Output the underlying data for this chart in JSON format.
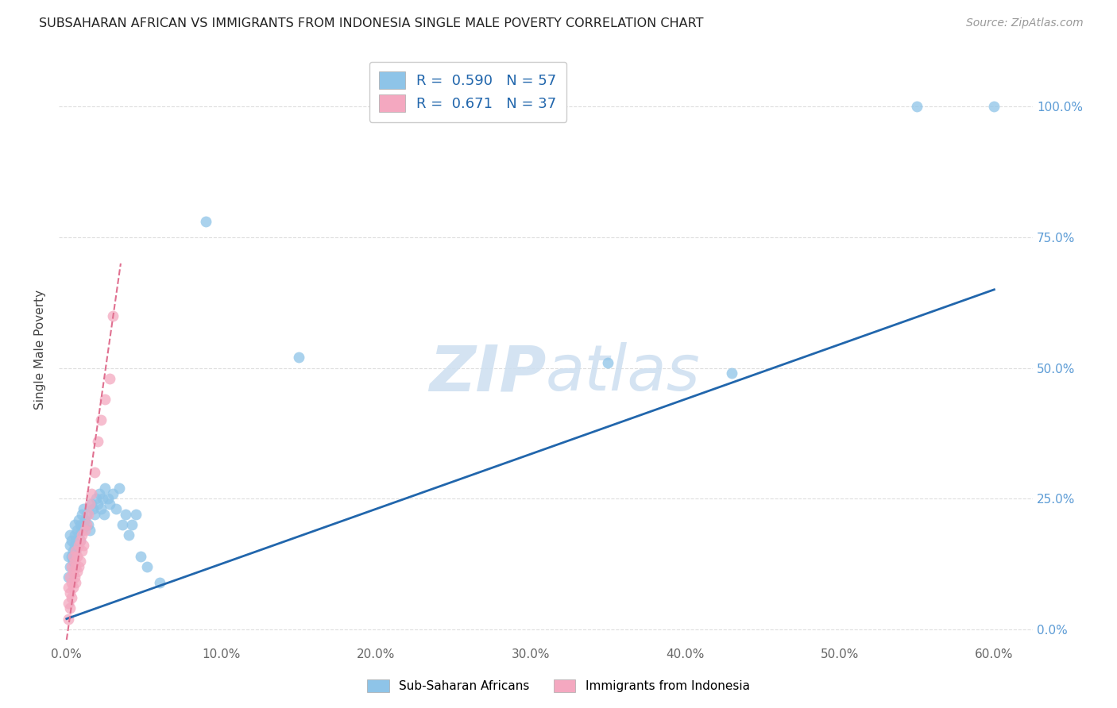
{
  "title": "SUBSAHARAN AFRICAN VS IMMIGRANTS FROM INDONESIA SINGLE MALE POVERTY CORRELATION CHART",
  "source": "Source: ZipAtlas.com",
  "ylabel_label": "Single Male Poverty",
  "legend_label1": "Sub-Saharan Africans",
  "legend_label2": "Immigrants from Indonesia",
  "R1": 0.59,
  "N1": 57,
  "R2": 0.671,
  "N2": 37,
  "color1": "#8ec4e8",
  "color2": "#f4a8c0",
  "line_color1": "#2166ac",
  "line_color2": "#e07090",
  "watermark_color": "#cddff0",
  "blue_scatter_x": [
    0.001,
    0.001,
    0.002,
    0.002,
    0.002,
    0.003,
    0.003,
    0.004,
    0.004,
    0.005,
    0.005,
    0.005,
    0.006,
    0.006,
    0.007,
    0.007,
    0.008,
    0.008,
    0.009,
    0.009,
    0.01,
    0.01,
    0.011,
    0.011,
    0.012,
    0.013,
    0.014,
    0.015,
    0.016,
    0.017,
    0.018,
    0.019,
    0.02,
    0.021,
    0.022,
    0.023,
    0.024,
    0.025,
    0.027,
    0.028,
    0.03,
    0.032,
    0.034,
    0.036,
    0.038,
    0.04,
    0.042,
    0.045,
    0.048,
    0.052,
    0.06,
    0.09,
    0.15,
    0.35,
    0.43,
    0.55,
    0.6
  ],
  "blue_scatter_y": [
    0.1,
    0.14,
    0.12,
    0.16,
    0.18,
    0.14,
    0.17,
    0.13,
    0.15,
    0.16,
    0.18,
    0.2,
    0.15,
    0.17,
    0.16,
    0.19,
    0.18,
    0.21,
    0.17,
    0.2,
    0.19,
    0.22,
    0.2,
    0.23,
    0.21,
    0.22,
    0.2,
    0.19,
    0.24,
    0.23,
    0.22,
    0.25,
    0.24,
    0.26,
    0.23,
    0.25,
    0.22,
    0.27,
    0.25,
    0.24,
    0.26,
    0.23,
    0.27,
    0.2,
    0.22,
    0.18,
    0.2,
    0.22,
    0.14,
    0.12,
    0.09,
    0.78,
    0.52,
    0.51,
    0.49,
    1.0,
    1.0
  ],
  "pink_scatter_x": [
    0.001,
    0.001,
    0.001,
    0.002,
    0.002,
    0.002,
    0.003,
    0.003,
    0.003,
    0.004,
    0.004,
    0.004,
    0.005,
    0.005,
    0.006,
    0.006,
    0.006,
    0.007,
    0.007,
    0.008,
    0.008,
    0.009,
    0.009,
    0.01,
    0.01,
    0.011,
    0.012,
    0.013,
    0.014,
    0.015,
    0.016,
    0.018,
    0.02,
    0.022,
    0.025,
    0.028,
    0.03
  ],
  "pink_scatter_y": [
    0.02,
    0.05,
    0.08,
    0.04,
    0.07,
    0.1,
    0.06,
    0.09,
    0.12,
    0.08,
    0.11,
    0.14,
    0.1,
    0.13,
    0.09,
    0.12,
    0.15,
    0.11,
    0.14,
    0.12,
    0.16,
    0.13,
    0.17,
    0.15,
    0.18,
    0.16,
    0.19,
    0.2,
    0.22,
    0.24,
    0.26,
    0.3,
    0.36,
    0.4,
    0.44,
    0.48,
    0.6
  ],
  "blue_line_x0": 0.0,
  "blue_line_y0": 0.02,
  "blue_line_x1": 0.6,
  "blue_line_y1": 0.65,
  "pink_line_x0": 0.0,
  "pink_line_y0": -0.02,
  "pink_line_x1": 0.035,
  "pink_line_y1": 0.7,
  "xlim_min": -0.005,
  "xlim_max": 0.625,
  "ylim_min": -0.03,
  "ylim_max": 1.1,
  "x_tick_vals": [
    0.0,
    0.1,
    0.2,
    0.3,
    0.4,
    0.5,
    0.6
  ],
  "y_tick_vals": [
    0.0,
    0.25,
    0.5,
    0.75,
    1.0
  ]
}
